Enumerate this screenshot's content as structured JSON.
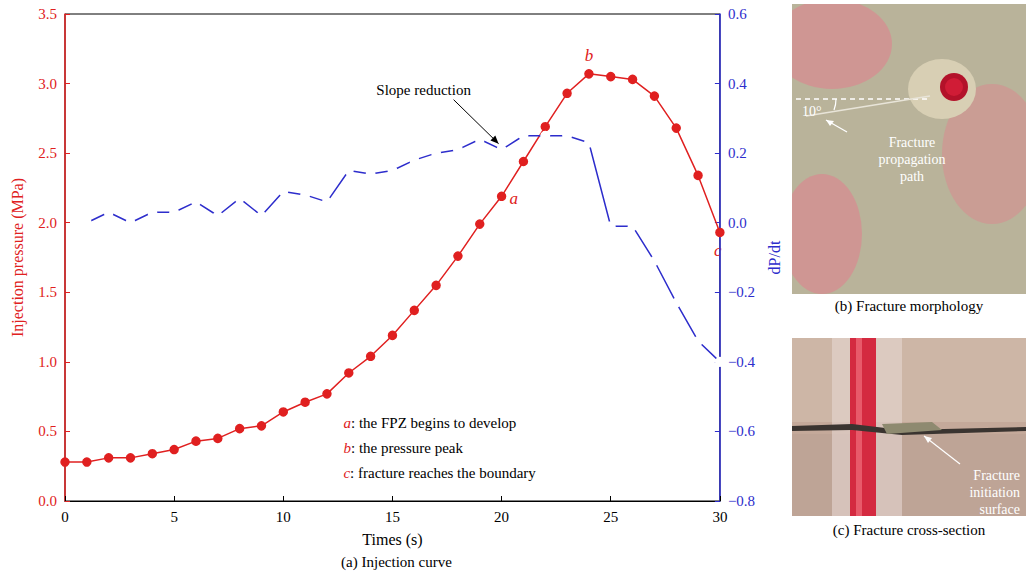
{
  "chart_data": {
    "type": "line",
    "caption": "(a) Injection curve",
    "x_label": "Times (s)",
    "y_label": "Injection pressure (MPa)",
    "y2_label": "dP/dt",
    "x": [
      0,
      1,
      2,
      3,
      4,
      5,
      6,
      7,
      8,
      9,
      10,
      11,
      12,
      13,
      14,
      15,
      16,
      17,
      18,
      19,
      20,
      21,
      22,
      23,
      24,
      25,
      26,
      27,
      28,
      29,
      30
    ],
    "series": [
      {
        "name": "Injection pressure (MPa)",
        "color": "#e02020",
        "marker": "filled_circle",
        "line_style": "solid",
        "values": [
          0.28,
          0.28,
          0.31,
          0.31,
          0.34,
          0.37,
          0.43,
          0.45,
          0.52,
          0.54,
          0.64,
          0.71,
          0.77,
          0.92,
          1.04,
          1.19,
          1.37,
          1.55,
          1.76,
          1.99,
          2.19,
          2.44,
          2.69,
          2.93,
          3.07,
          3.05,
          3.03,
          2.91,
          2.68,
          2.34,
          1.93
        ]
      },
      {
        "name": "dP/dt",
        "color": "#2d2dcc",
        "marker": "open_circle",
        "line_style": "solid",
        "axis": "y2",
        "values": [
          null,
          0.0,
          0.03,
          0.0,
          0.03,
          0.03,
          0.06,
          0.02,
          0.07,
          0.02,
          0.09,
          0.08,
          0.06,
          0.15,
          0.14,
          0.15,
          0.18,
          0.2,
          0.21,
          0.24,
          0.21,
          0.25,
          0.25,
          0.25,
          0.23,
          -0.01,
          -0.01,
          -0.11,
          -0.23,
          -0.34,
          -0.4
        ]
      }
    ],
    "xlim": [
      0,
      30
    ],
    "xticks": [
      0,
      5,
      10,
      15,
      20,
      25,
      30
    ],
    "ylim": [
      0,
      3.5
    ],
    "yticks": [
      {
        "value": 0,
        "label": "0.0"
      },
      0.5,
      {
        "value": 1,
        "label": "1.0"
      },
      1.5,
      {
        "value": 2,
        "label": "2.0"
      },
      2.5,
      {
        "value": 3,
        "label": "3.0"
      },
      3.5
    ],
    "y2lim": [
      -0.8,
      0.6
    ],
    "y2ticks": [
      {
        "value": -0.8,
        "label": "−0.8"
      },
      {
        "value": -0.6,
        "label": "−0.6"
      },
      {
        "value": -0.4,
        "label": "−0.4"
      },
      {
        "value": -0.2,
        "label": "−0.2"
      },
      {
        "value": 0,
        "label": "0.0"
      },
      0.2,
      0.4,
      0.6
    ],
    "grid": false,
    "annotations": [
      {
        "text": "a",
        "series": 0,
        "x": 20
      },
      {
        "text": "b",
        "series": 0,
        "x": 24
      },
      {
        "text": "c",
        "series": 0,
        "x": 30
      },
      {
        "text": "Slope reduction",
        "series": 1,
        "x": 20
      }
    ],
    "notes": [
      "a: the FPZ begins to develop",
      "b: the pressure peak",
      "c: fracture reaches the boundary"
    ]
  },
  "panels": [
    {
      "caption": "(b) Fracture morphology",
      "labels": [
        "Fracture propagation path"
      ],
      "angle_label": "10°"
    },
    {
      "caption": "(c) Fracture cross-section",
      "labels": [
        "Fracture initiation surface"
      ]
    }
  ]
}
